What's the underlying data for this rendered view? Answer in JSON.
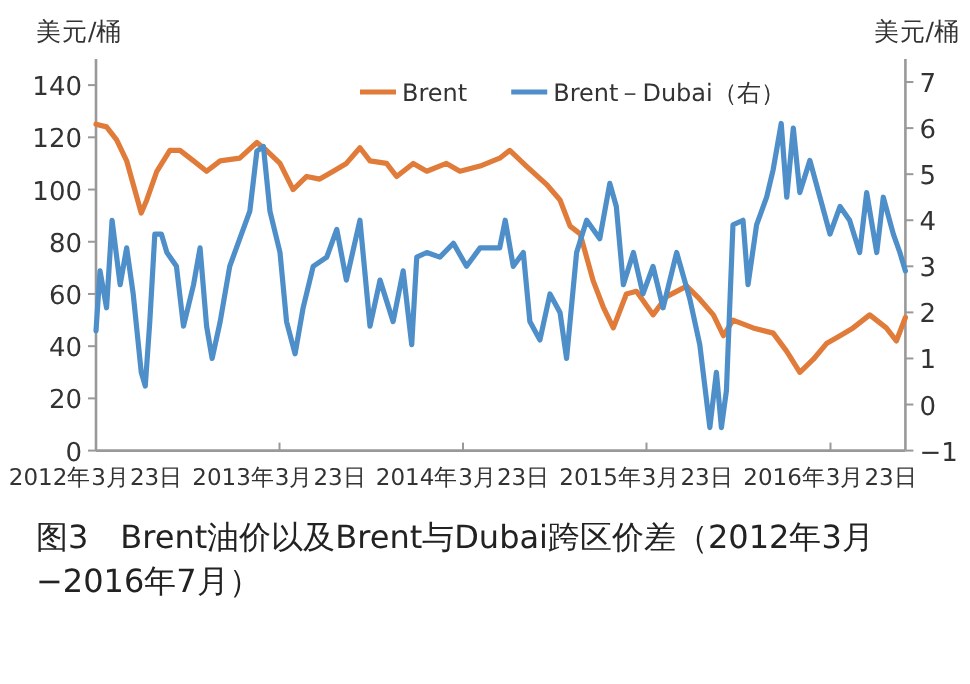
{
  "chart_data": {
    "type": "line",
    "title": "图3　Brent油价以及Brent与Dubai跨区价差（2012年3月−2016年7月）",
    "ylabel": "美元/桶",
    "y2label": "美元/桶",
    "xlim": [
      "2012-03-23",
      "2016-08-19"
    ],
    "ylim": [
      0,
      150
    ],
    "y2lim": [
      -1,
      7.5
    ],
    "xticks": [
      {
        "value": "2012-03-23",
        "label": "2012年3月23日"
      },
      {
        "value": "2013-03-23",
        "label": "2013年3月23日"
      },
      {
        "value": "2014-03-23",
        "label": "2014年3月23日"
      },
      {
        "value": "2015-03-23",
        "label": "2015年3月23日"
      },
      {
        "value": "2016-03-23",
        "label": "2016年3月23日"
      }
    ],
    "yticks": [
      0,
      20,
      40,
      60,
      80,
      100,
      120,
      140
    ],
    "y2ticks": [
      -1,
      0,
      1,
      2,
      3,
      4,
      5,
      6,
      7
    ],
    "legend": "top",
    "grid": false,
    "marker": "none",
    "line_style": "solid",
    "series": [
      {
        "name": "Brent",
        "color": "#e07b39",
        "x": [
          "2012-03-23",
          "2012-04-13",
          "2012-05-03",
          "2012-05-23",
          "2012-06-05",
          "2012-06-21",
          "2012-07-02",
          "2012-07-22",
          "2012-08-17",
          "2012-09-06",
          "2012-10-03",
          "2012-10-29",
          "2012-11-25",
          "2013-01-03",
          "2013-02-06",
          "2013-02-25",
          "2013-03-24",
          "2013-04-19",
          "2013-05-16",
          "2013-06-11",
          "2013-07-08",
          "2013-08-03",
          "2013-08-30",
          "2013-09-19",
          "2013-10-22",
          "2013-11-11",
          "2013-12-14",
          "2014-01-10",
          "2014-02-18",
          "2014-03-17",
          "2014-04-26",
          "2014-06-04",
          "2014-06-24",
          "2014-07-27",
          "2014-09-05",
          "2014-10-02",
          "2014-10-22",
          "2014-11-11",
          "2014-12-07",
          "2014-12-27",
          "2015-01-16",
          "2015-02-11",
          "2015-03-03",
          "2015-04-05",
          "2015-05-02",
          "2015-06-11",
          "2015-07-07",
          "2015-08-03",
          "2015-08-23",
          "2015-09-11",
          "2015-10-21",
          "2015-11-30",
          "2015-12-27",
          "2016-01-22",
          "2016-02-18",
          "2016-03-15",
          "2016-04-11",
          "2016-05-07",
          "2016-06-09",
          "2016-07-12",
          "2016-08-01",
          "2016-08-19"
        ],
        "values": [
          125,
          124,
          119,
          111,
          102,
          91,
          96,
          107,
          115,
          115,
          111,
          107,
          111,
          112,
          118,
          115,
          110,
          100,
          105,
          104,
          107,
          110,
          116,
          111,
          110,
          105,
          110,
          107,
          110,
          107,
          109,
          112,
          115,
          109,
          102,
          96,
          86,
          83,
          65,
          55,
          47,
          60,
          61,
          52,
          59,
          63,
          58,
          52,
          44,
          50,
          47,
          45,
          38,
          30,
          35,
          41,
          44,
          47,
          52,
          47,
          42,
          51
        ]
      },
      {
        "name": "Brent－Dubai（右）",
        "color": "#4f8fc9",
        "axis": "y2",
        "x": [
          "2012-03-23",
          "2012-03-31",
          "2012-04-13",
          "2012-04-24",
          "2012-05-10",
          "2012-05-23",
          "2012-06-05",
          "2012-06-21",
          "2012-06-29",
          "2012-07-08",
          "2012-07-18",
          "2012-07-31",
          "2012-08-11",
          "2012-08-30",
          "2012-09-13",
          "2012-10-03",
          "2012-10-16",
          "2012-10-29",
          "2012-11-09",
          "2012-11-25",
          "2012-12-14",
          "2013-01-03",
          "2013-01-23",
          "2013-02-06",
          "2013-02-19",
          "2013-03-04",
          "2013-03-24",
          "2013-04-06",
          "2013-04-23",
          "2013-05-09",
          "2013-05-29",
          "2013-06-25",
          "2013-07-15",
          "2013-08-03",
          "2013-08-30",
          "2013-09-19",
          "2013-10-09",
          "2013-11-04",
          "2013-11-24",
          "2013-12-11",
          "2013-12-21",
          "2014-01-10",
          "2014-02-05",
          "2014-03-04",
          "2014-03-30",
          "2014-04-26",
          "2014-06-04",
          "2014-06-15",
          "2014-07-01",
          "2014-07-21",
          "2014-08-03",
          "2014-08-23",
          "2014-09-12",
          "2014-10-02",
          "2014-10-15",
          "2014-11-04",
          "2014-11-24",
          "2014-12-20",
          "2015-01-09",
          "2015-01-22",
          "2015-02-05",
          "2015-02-25",
          "2015-03-16",
          "2015-04-05",
          "2015-04-25",
          "2015-05-22",
          "2015-06-17",
          "2015-07-07",
          "2015-07-27",
          "2015-08-09",
          "2015-08-19",
          "2015-08-29",
          "2015-09-11",
          "2015-10-01",
          "2015-10-11",
          "2015-10-28",
          "2015-11-17",
          "2015-11-30",
          "2015-12-16",
          "2015-12-27",
          "2016-01-09",
          "2016-01-22",
          "2016-02-11",
          "2016-03-02",
          "2016-03-22",
          "2016-04-11",
          "2016-04-30",
          "2016-05-20",
          "2016-06-03",
          "2016-06-23",
          "2016-07-06",
          "2016-07-26",
          "2016-08-08",
          "2016-08-19"
        ],
        "values": [
          1.6,
          2.9,
          2.1,
          4.0,
          2.6,
          3.4,
          2.4,
          0.7,
          0.4,
          1.8,
          3.7,
          3.7,
          3.3,
          3.0,
          1.7,
          2.6,
          3.4,
          1.7,
          1.0,
          1.8,
          3.0,
          3.6,
          4.2,
          5.5,
          5.6,
          4.2,
          3.3,
          1.8,
          1.1,
          2.1,
          3.0,
          3.2,
          3.8,
          2.7,
          4.0,
          1.7,
          2.7,
          1.8,
          2.9,
          1.3,
          3.2,
          3.3,
          3.2,
          3.5,
          3.0,
          3.4,
          3.4,
          4.0,
          3.0,
          3.3,
          1.8,
          1.4,
          2.4,
          2.0,
          1.0,
          3.3,
          4.0,
          3.6,
          4.8,
          4.3,
          2.6,
          3.3,
          2.4,
          3.0,
          2.1,
          3.3,
          2.3,
          1.3,
          -0.5,
          0.7,
          -0.5,
          0.3,
          3.9,
          4.0,
          2.6,
          3.9,
          4.5,
          5.1,
          6.1,
          4.5,
          6.0,
          4.6,
          5.3,
          4.5,
          3.7,
          4.3,
          4.0,
          3.3,
          4.6,
          3.3,
          4.5,
          3.7,
          3.3,
          2.9
        ]
      }
    ]
  }
}
